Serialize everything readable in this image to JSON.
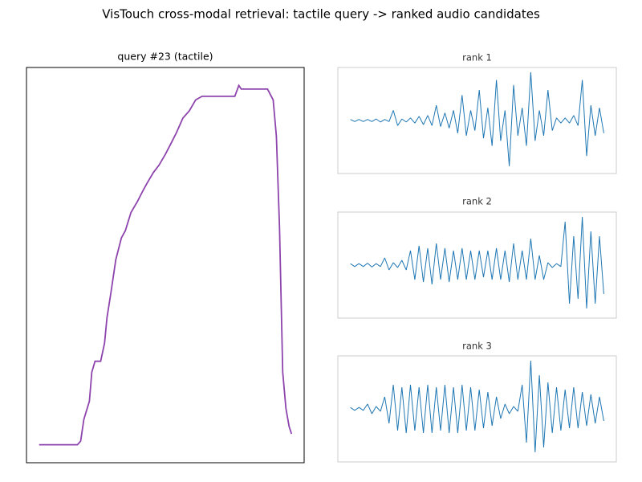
{
  "title": "VisTouch cross-modal retrieval: tactile query -> ranked audio candidates",
  "chart_data": [
    {
      "type": "line",
      "title": "query #23 (tactile)",
      "color": "#8e44ad",
      "x": [
        0,
        8,
        16,
        24,
        32,
        40,
        48,
        52,
        56,
        63,
        66,
        70,
        77,
        82,
        85,
        90,
        96,
        103,
        108,
        115,
        123,
        130,
        135,
        143,
        150,
        158,
        165,
        172,
        180,
        188,
        196,
        204,
        213,
        223,
        233,
        245,
        250,
        253,
        263,
        273,
        286,
        293,
        297,
        301,
        305,
        309,
        313,
        316
      ],
      "values": [
        0,
        0,
        0,
        0,
        0,
        0,
        0,
        0.01,
        0.07,
        0.12,
        0.2,
        0.23,
        0.23,
        0.28,
        0.35,
        0.42,
        0.51,
        0.57,
        0.59,
        0.64,
        0.67,
        0.7,
        0.72,
        0.75,
        0.77,
        0.8,
        0.83,
        0.86,
        0.9,
        0.92,
        0.95,
        0.96,
        0.96,
        0.96,
        0.96,
        0.96,
        0.99,
        0.98,
        0.98,
        0.98,
        0.98,
        0.95,
        0.85,
        0.6,
        0.2,
        0.1,
        0.05,
        0.03
      ]
    },
    {
      "type": "waveform",
      "title": "rank 1",
      "color": "#1f77b4",
      "values": [
        0.02,
        -0.02,
        0.02,
        -0.02,
        0.02,
        -0.02,
        0.03,
        -0.03,
        0.02,
        -0.02,
        0.2,
        -0.1,
        0.03,
        -0.03,
        0.05,
        -0.05,
        0.08,
        -0.08,
        0.1,
        -0.1,
        0.3,
        -0.12,
        0.15,
        -0.15,
        0.2,
        -0.25,
        0.5,
        -0.3,
        0.2,
        -0.2,
        0.6,
        -0.35,
        0.25,
        -0.5,
        0.8,
        -0.4,
        0.2,
        -0.9,
        0.7,
        -0.3,
        0.25,
        -0.5,
        0.95,
        -0.4,
        0.2,
        -0.3,
        0.6,
        -0.2,
        0.05,
        -0.05,
        0.05,
        -0.05,
        0.1,
        -0.1,
        0.8,
        -0.7,
        0.3,
        -0.3,
        0.25,
        -0.25
      ]
    },
    {
      "type": "waveform",
      "title": "rank 2",
      "color": "#1f77b4",
      "values": [
        0.03,
        -0.03,
        0.03,
        -0.03,
        0.04,
        -0.04,
        0.03,
        -0.03,
        0.15,
        -0.1,
        0.05,
        -0.05,
        0.1,
        -0.1,
        0.3,
        -0.3,
        0.4,
        -0.35,
        0.35,
        -0.4,
        0.45,
        -0.3,
        0.35,
        -0.35,
        0.3,
        -0.3,
        0.35,
        -0.3,
        0.3,
        -0.3,
        0.3,
        -0.25,
        0.3,
        -0.3,
        0.35,
        -0.3,
        0.3,
        -0.35,
        0.45,
        -0.3,
        0.3,
        -0.3,
        0.55,
        -0.3,
        0.2,
        -0.3,
        0.05,
        -0.05,
        0.03,
        -0.03,
        0.9,
        -0.8,
        0.6,
        -0.7,
        1.0,
        -0.9,
        0.7,
        -0.8,
        0.6,
        -0.6
      ]
    },
    {
      "type": "waveform",
      "title": "rank 3",
      "color": "#1f77b4",
      "values": [
        0.03,
        -0.03,
        0.03,
        -0.03,
        0.1,
        -0.1,
        0.05,
        -0.05,
        0.25,
        -0.3,
        0.5,
        -0.45,
        0.45,
        -0.5,
        0.5,
        -0.45,
        0.45,
        -0.5,
        0.5,
        -0.5,
        0.45,
        -0.45,
        0.5,
        -0.5,
        0.45,
        -0.5,
        0.5,
        -0.45,
        0.45,
        -0.45,
        0.4,
        -0.4,
        0.35,
        -0.35,
        0.25,
        -0.2,
        0.1,
        -0.1,
        0.05,
        -0.05,
        0.5,
        -0.7,
        1.0,
        -0.9,
        0.7,
        -0.8,
        0.55,
        -0.5,
        0.45,
        -0.45,
        0.4,
        -0.4,
        0.45,
        -0.4,
        0.35,
        -0.35,
        0.3,
        -0.3,
        0.25,
        -0.25
      ]
    }
  ]
}
